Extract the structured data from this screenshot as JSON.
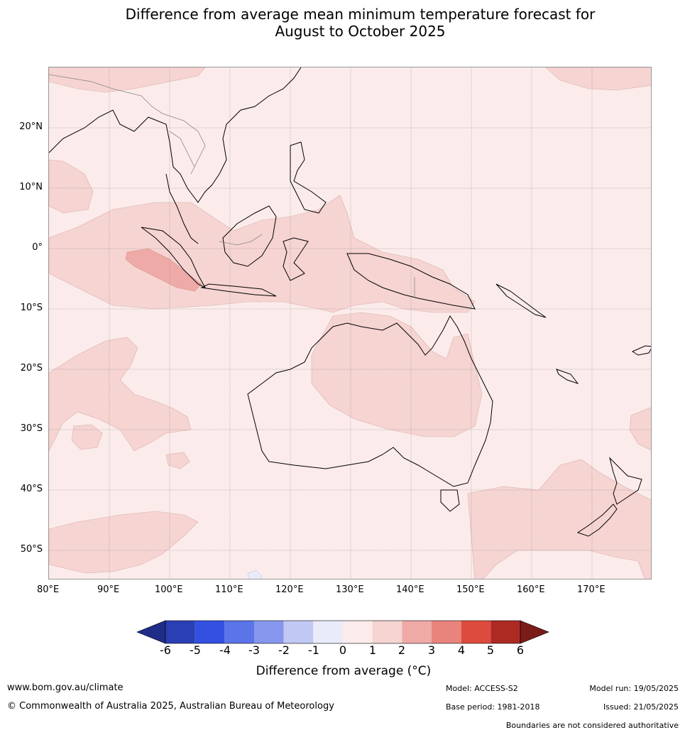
{
  "title": {
    "line1": "Difference from average mean minimum temperature forecast for",
    "line2": "August to October 2025"
  },
  "map": {
    "lat_labels": [
      "20°N",
      "10°N",
      "0°",
      "10°S",
      "20°S",
      "30°S",
      "40°S",
      "50°S"
    ],
    "lon_labels": [
      "80°E",
      "90°E",
      "100°E",
      "110°E",
      "120°E",
      "130°E",
      "140°E",
      "150°E",
      "160°E",
      "170°E"
    ],
    "background_color": "#fbeceb"
  },
  "colorbar": {
    "ticks": [
      "-6",
      "-5",
      "-4",
      "-3",
      "-2",
      "-1",
      "0",
      "1",
      "2",
      "3",
      "4",
      "5",
      "6"
    ],
    "colors": [
      "#1f2c88",
      "#2a3fb3",
      "#3350e0",
      "#5b74e8",
      "#8797ed",
      "#c2c8f4",
      "#e9ebfb",
      "#fbeceb",
      "#f6d4d2",
      "#eeaaa6",
      "#e8847c",
      "#dc4b3e",
      "#ad2a22",
      "#7a1c18"
    ],
    "label": "Difference from average (°C)"
  },
  "footer": {
    "website": "www.bom.gov.au/climate",
    "copyright": "© Commonwealth of Australia 2025, Australian Bureau of Meteorology",
    "model": "Model: ACCESS-S2",
    "base_period": "Base period: 1981-2018",
    "model_run": "Model run: 19/05/2025",
    "issued": "Issued: 21/05/2025",
    "disclaimer": "Boundaries are not considered authoritative"
  }
}
